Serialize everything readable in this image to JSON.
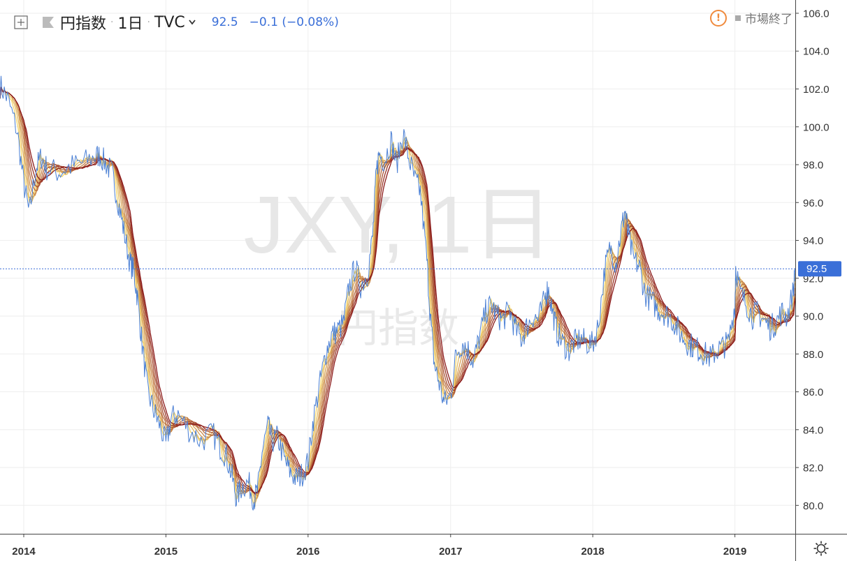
{
  "header": {
    "symbol_name": "円指数",
    "interval": "1日",
    "source": "TVC",
    "last_price": "92.5",
    "change": "−0.1 (−0.08%)"
  },
  "status": {
    "market_text": "市場終了"
  },
  "watermark": {
    "line1": "JXY, 1日",
    "line2": "円指数"
  },
  "price_tag": "92.5",
  "colors": {
    "price_line": "#4a7fd4",
    "ribbon_warm": "#8b1a1a",
    "ribbon_light": "#f5d76e",
    "price_tag_bg": "#3a6fd8",
    "last_price_line": "#3a6fd8",
    "warning": "#f08a3c"
  },
  "icons": [
    "add-compare-icon",
    "flag-icon",
    "chevron-down-icon",
    "warning-icon",
    "settings-icon"
  ],
  "chart_data": {
    "type": "line",
    "xlabel": "",
    "ylabel": "",
    "x_ticks": [
      "2014",
      "2015",
      "2016",
      "2017",
      "2018",
      "2019"
    ],
    "y_ticks": [
      "80.0",
      "82.0",
      "84.0",
      "86.0",
      "88.0",
      "90.0",
      "92.0",
      "94.0",
      "96.0",
      "98.0",
      "100.0",
      "102.0",
      "104.0",
      "106.0"
    ],
    "ylim": [
      78.5,
      106.7
    ],
    "xlim": [
      "2013-11-01",
      "2019-06-05"
    ],
    "grid": true,
    "last_value": 92.5,
    "series": [
      {
        "role": "price",
        "x": [
          "2013-11-01",
          "2013-11-20",
          "2013-12-15",
          "2014-01-01",
          "2014-01-15",
          "2014-02-01",
          "2014-02-15",
          "2014-03-01",
          "2014-04-01",
          "2014-05-01",
          "2014-06-01",
          "2014-07-01",
          "2014-07-15",
          "2014-08-01",
          "2014-08-15",
          "2014-09-01",
          "2014-09-15",
          "2014-10-01",
          "2014-10-10",
          "2014-10-20",
          "2014-11-01",
          "2014-11-15",
          "2014-12-01",
          "2014-12-15",
          "2015-01-01",
          "2015-01-15",
          "2015-02-01",
          "2015-03-01",
          "2015-04-01",
          "2015-05-01",
          "2015-05-20",
          "2015-06-05",
          "2015-06-20",
          "2015-07-01",
          "2015-07-15",
          "2015-08-01",
          "2015-08-15",
          "2015-08-25",
          "2015-09-05",
          "2015-09-20",
          "2015-10-01",
          "2015-10-15",
          "2015-11-01",
          "2015-11-15",
          "2015-12-01",
          "2015-12-15",
          "2016-01-01",
          "2016-01-15",
          "2016-02-01",
          "2016-02-15",
          "2016-03-01",
          "2016-03-15",
          "2016-04-01",
          "2016-04-15",
          "2016-05-01",
          "2016-05-15",
          "2016-06-01",
          "2016-06-15",
          "2016-06-24",
          "2016-07-01",
          "2016-07-15",
          "2016-08-01",
          "2016-08-15",
          "2016-09-01",
          "2016-09-15",
          "2016-10-01",
          "2016-10-15",
          "2016-11-01",
          "2016-11-10",
          "2016-11-20",
          "2016-12-01",
          "2016-12-15",
          "2017-01-01",
          "2017-01-15",
          "2017-02-01",
          "2017-02-15",
          "2017-03-01",
          "2017-03-15",
          "2017-04-01",
          "2017-04-15",
          "2017-05-01",
          "2017-05-15",
          "2017-06-01",
          "2017-06-15",
          "2017-07-01",
          "2017-07-15",
          "2017-08-01",
          "2017-08-15",
          "2017-09-01",
          "2017-09-08",
          "2017-09-20",
          "2017-10-01",
          "2017-10-15",
          "2017-11-01",
          "2017-11-15",
          "2017-12-01",
          "2017-12-15",
          "2018-01-01",
          "2018-01-15",
          "2018-02-01",
          "2018-02-15",
          "2018-03-01",
          "2018-03-15",
          "2018-03-25",
          "2018-04-01",
          "2018-04-15",
          "2018-05-01",
          "2018-05-15",
          "2018-06-01",
          "2018-06-15",
          "2018-07-01",
          "2018-07-15",
          "2018-08-01",
          "2018-08-15",
          "2018-09-01",
          "2018-09-15",
          "2018-10-01",
          "2018-10-15",
          "2018-11-01",
          "2018-11-15",
          "2018-12-01",
          "2018-12-15",
          "2019-01-01",
          "2019-01-03",
          "2019-01-15",
          "2019-02-01",
          "2019-02-15",
          "2019-03-01",
          "2019-03-15",
          "2019-04-01",
          "2019-04-15",
          "2019-05-01",
          "2019-05-15",
          "2019-06-01",
          "2019-06-04"
        ],
        "values": [
          102.2,
          101.5,
          99.8,
          97.0,
          95.4,
          97.8,
          98.4,
          97.8,
          97.6,
          97.9,
          98.1,
          98.4,
          98.5,
          98.0,
          97.6,
          96.0,
          94.5,
          92.8,
          92.4,
          91.0,
          88.5,
          86.0,
          85.0,
          84.3,
          83.2,
          84.6,
          84.8,
          84.0,
          83.4,
          83.8,
          83.1,
          82.6,
          81.5,
          80.4,
          81.0,
          81.2,
          80.3,
          80.8,
          82.8,
          84.2,
          83.4,
          83.6,
          82.4,
          81.8,
          81.4,
          81.6,
          82.3,
          84.6,
          86.5,
          88.0,
          89.0,
          89.2,
          89.6,
          91.5,
          92.6,
          91.6,
          92.2,
          94.2,
          97.5,
          98.6,
          98.2,
          99.3,
          98.0,
          99.7,
          98.4,
          97.2,
          96.6,
          93.0,
          90.0,
          87.5,
          86.6,
          85.4,
          85.8,
          88.0,
          88.6,
          88.2,
          87.6,
          88.8,
          90.2,
          90.6,
          90.0,
          89.8,
          90.3,
          89.4,
          88.8,
          89.4,
          90.0,
          89.8,
          91.0,
          91.5,
          90.2,
          89.2,
          88.6,
          88.2,
          88.6,
          88.8,
          88.6,
          88.5,
          89.5,
          92.5,
          93.6,
          92.8,
          94.5,
          95.6,
          94.4,
          93.0,
          92.6,
          91.2,
          90.8,
          90.4,
          90.2,
          90.0,
          89.6,
          89.0,
          88.6,
          88.4,
          88.2,
          88.0,
          87.8,
          88.2,
          88.4,
          88.6,
          90.6,
          92.6,
          91.2,
          90.6,
          90.0,
          90.2,
          89.8,
          89.4,
          89.6,
          90.2,
          90.0,
          91.4,
          92.5
        ]
      }
    ],
    "ribbon": {
      "description": "moving-average ribbon, 8 lines, colored light yellow to dark red",
      "count": 8
    }
  }
}
